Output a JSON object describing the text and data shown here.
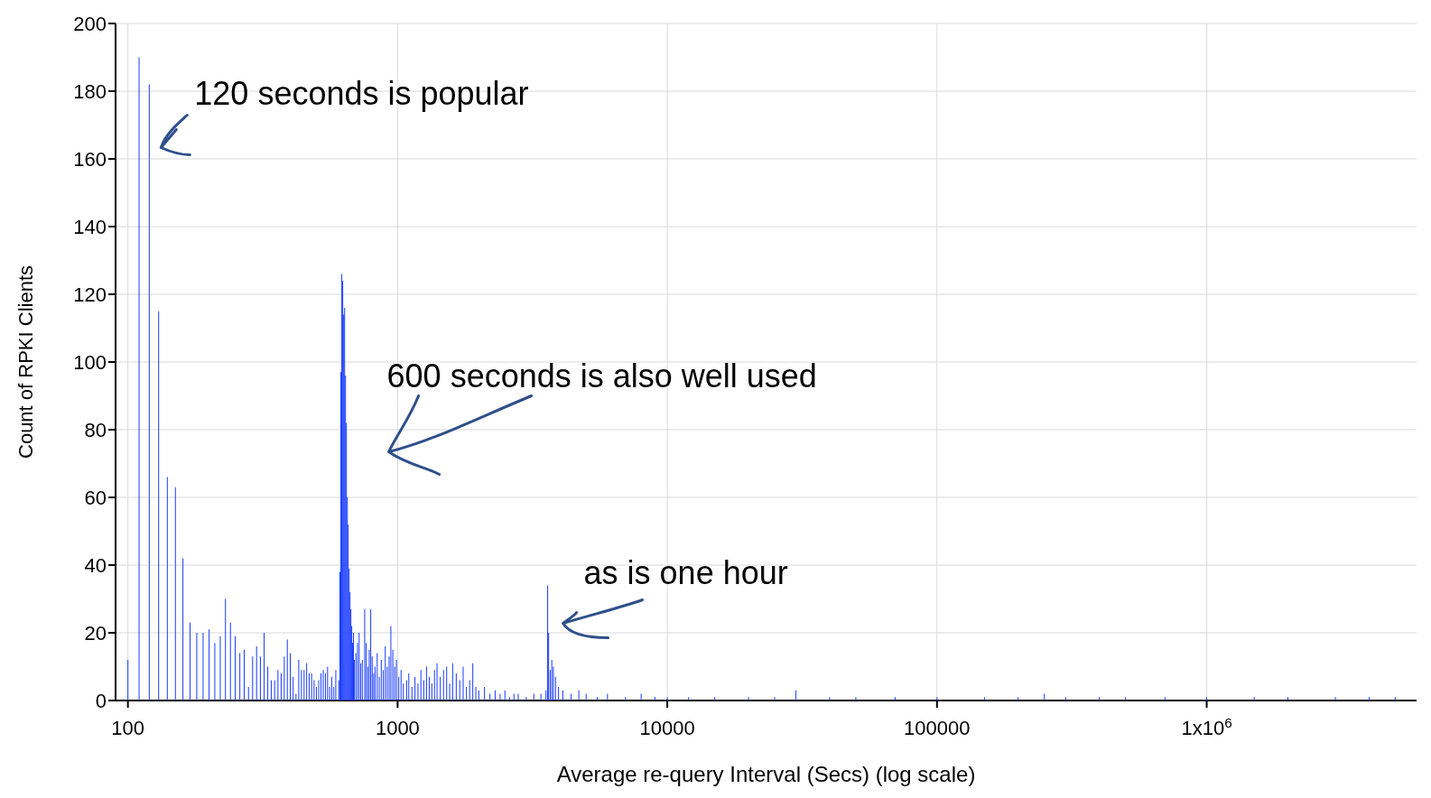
{
  "chart_data": {
    "type": "bar",
    "xlabel": "Average re-query Interval (Secs) (log scale)",
    "ylabel": "Count of RPKI Clients",
    "x": [
      100,
      110,
      120,
      130,
      140,
      150,
      160,
      170,
      180,
      190,
      200,
      210,
      220,
      230,
      240,
      250,
      260,
      270,
      280,
      290,
      300,
      310,
      320,
      330,
      340,
      350,
      360,
      370,
      380,
      390,
      400,
      410,
      420,
      430,
      440,
      450,
      460,
      470,
      480,
      490,
      500,
      510,
      520,
      530,
      540,
      550,
      560,
      570,
      580,
      590,
      605,
      611,
      616,
      621,
      626,
      631,
      636,
      641,
      646,
      651,
      656,
      661,
      666,
      671,
      676,
      681,
      686,
      691,
      700,
      710,
      720,
      730,
      740,
      755,
      765,
      775,
      785,
      795,
      805,
      815,
      825,
      840,
      855,
      870,
      885,
      900,
      915,
      930,
      944,
      960,
      975,
      990,
      1010,
      1030,
      1050,
      1080,
      1100,
      1130,
      1160,
      1190,
      1220,
      1250,
      1280,
      1310,
      1340,
      1370,
      1400,
      1440,
      1480,
      1520,
      1560,
      1600,
      1650,
      1700,
      1750,
      1800,
      1850,
      1900,
      1950,
      2000,
      2100,
      2200,
      2300,
      2400,
      2500,
      2600,
      2700,
      2800,
      3000,
      3200,
      3400,
      3550,
      3600,
      3630,
      3680,
      3730,
      3780,
      3850,
      3950,
      4100,
      4400,
      4700,
      5000,
      5500,
      6000,
      7000,
      8000,
      9000,
      10000,
      12000,
      15000,
      20000,
      25000,
      30000,
      40000,
      50000,
      70000,
      100000,
      150000,
      200000,
      250000,
      300000,
      400000,
      500000,
      700000,
      1000000,
      1500000,
      2000000,
      3000000,
      4000000,
      5000000
    ],
    "values": [
      12,
      190,
      182,
      115,
      66,
      63,
      42,
      23,
      20,
      20,
      21,
      17,
      19,
      30,
      23,
      19,
      14,
      15,
      4,
      13,
      16,
      13,
      20,
      10,
      6,
      6,
      9,
      8,
      13,
      18,
      14,
      7,
      2,
      12,
      9,
      9,
      11,
      8,
      8,
      6,
      4,
      6,
      8,
      9,
      8,
      10,
      4,
      7,
      4,
      9,
      6,
      38,
      97,
      126,
      124,
      114,
      116,
      96,
      82,
      60,
      52,
      39,
      32,
      27,
      22,
      17,
      20,
      12,
      14,
      17,
      20,
      11,
      12,
      27,
      17,
      10,
      15,
      27,
      13,
      8,
      10,
      14,
      7,
      12,
      9,
      16,
      10,
      13,
      22,
      15,
      10,
      12,
      7,
      9,
      5,
      6,
      8,
      4,
      7,
      5,
      9,
      6,
      10,
      7,
      5,
      9,
      11,
      7,
      9,
      10,
      5,
      11,
      8,
      6,
      10,
      4,
      6,
      11,
      4,
      3,
      4,
      2,
      3,
      2,
      3,
      1,
      2,
      2,
      1,
      2,
      2,
      3,
      34,
      20,
      9,
      12,
      10,
      7,
      4,
      3,
      2,
      3,
      2,
      1,
      2,
      1,
      2,
      1,
      1,
      1,
      1,
      1,
      1,
      3,
      1,
      1,
      1,
      1,
      1,
      1,
      2,
      1,
      1,
      1,
      1,
      1,
      1,
      1,
      1,
      1,
      1
    ],
    "color": "#1a3cff",
    "xlim": [
      90,
      6000000
    ],
    "xticks": [
      100,
      1000,
      10000,
      100000,
      {
        "value": 1000000,
        "label": "1x10$^{6}$"
      }
    ],
    "ylim": [
      0,
      200
    ],
    "yticks": [
      0,
      20,
      40,
      60,
      80,
      100,
      120,
      140,
      160,
      180,
      200
    ],
    "log": "x",
    "grid": true,
    "annotations": [
      {
        "text": "120 seconds is popular",
        "x": 120,
        "y": 182
      },
      {
        "text": "600 seconds is also well used",
        "x": 621,
        "y": 126
      },
      {
        "text": "as is one hour",
        "x": 3600,
        "y": 34
      }
    ]
  }
}
